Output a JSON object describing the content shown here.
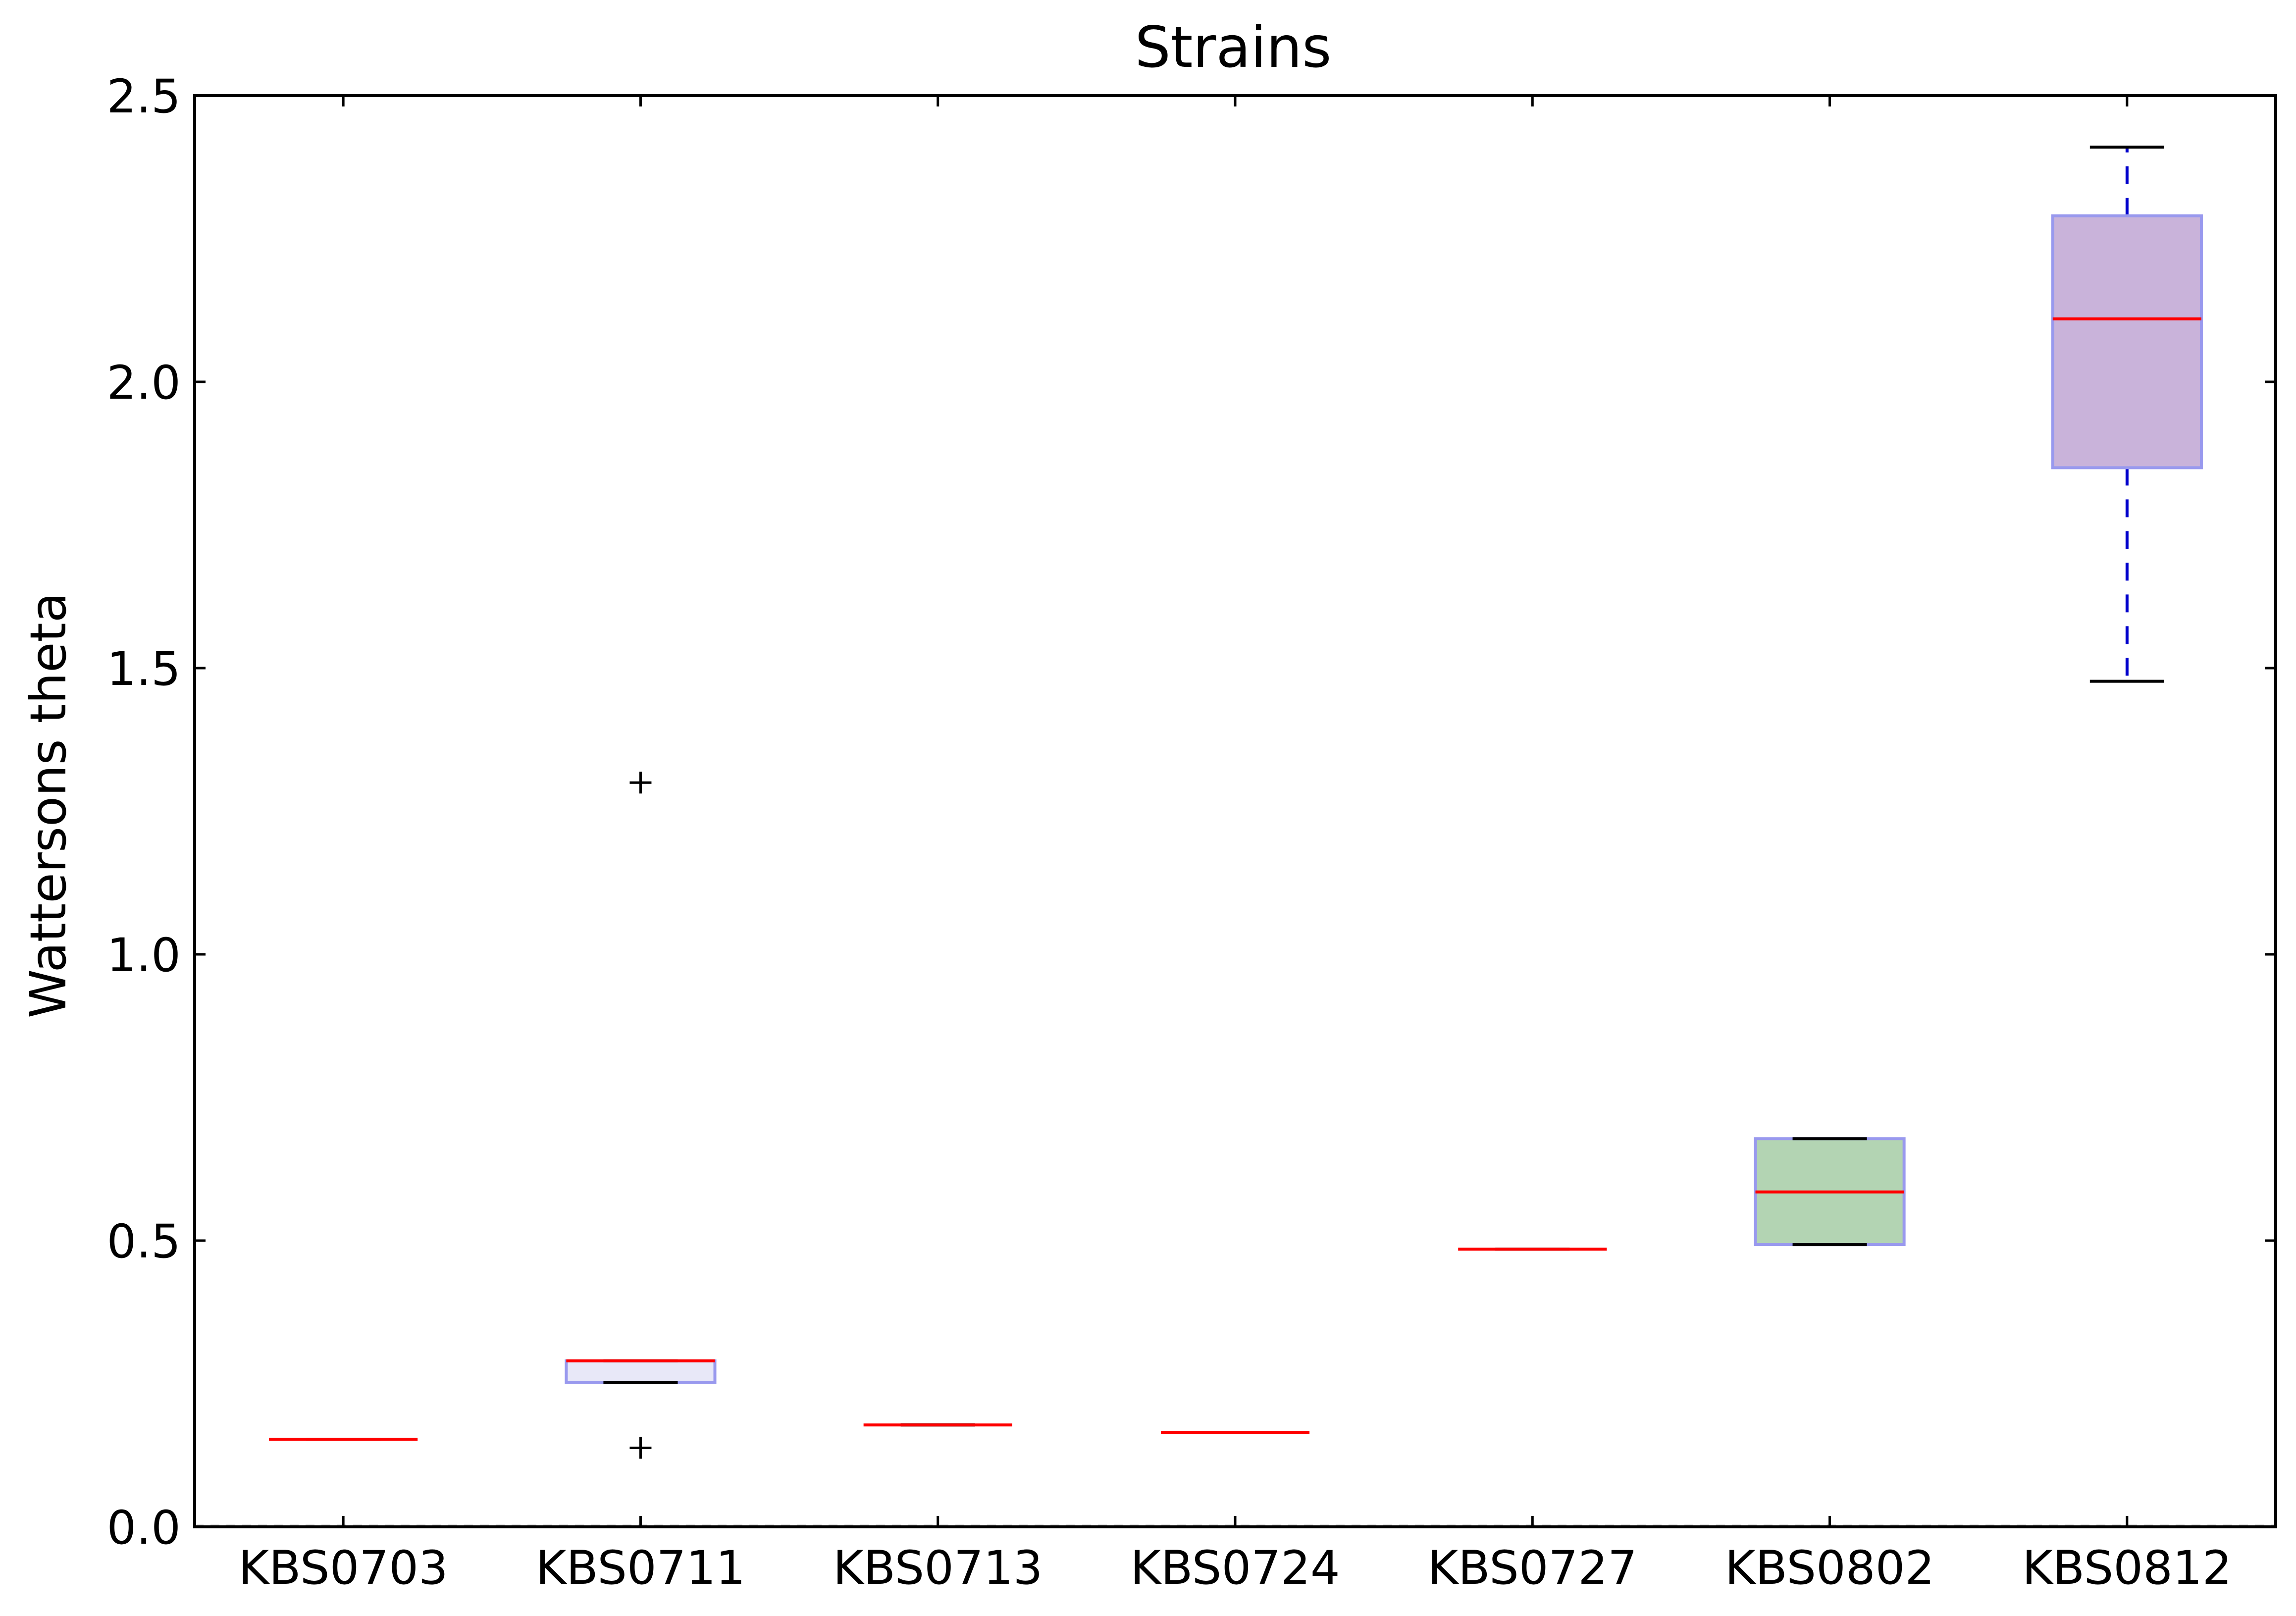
{
  "chart_data": {
    "type": "box",
    "title": "Strains",
    "xlabel": "",
    "ylabel": "Wattersons theta",
    "ylim": [
      0.0,
      2.5
    ],
    "yticks": [
      "0.0",
      "0.5",
      "1.0",
      "1.5",
      "2.0",
      "2.5"
    ],
    "categories": [
      "KBS0703",
      "KBS0711",
      "KBS0713",
      "KBS0724",
      "KBS0727",
      "KBS0802",
      "KBS0812"
    ],
    "boxes": [
      {
        "category": "KBS0703",
        "whislo": 0.153,
        "q1": 0.153,
        "median": 0.153,
        "q3": 0.153,
        "whishi": 0.153,
        "fliers": [],
        "fill": "#e8e8f8"
      },
      {
        "category": "KBS0711",
        "whislo": 0.252,
        "q1": 0.252,
        "median": 0.29,
        "q3": 0.29,
        "whishi": 0.29,
        "fliers": [
          1.3,
          0.138
        ],
        "fill": "#e8e8f8"
      },
      {
        "category": "KBS0713",
        "whislo": 0.178,
        "q1": 0.178,
        "median": 0.178,
        "q3": 0.178,
        "whishi": 0.178,
        "fliers": [],
        "fill": "#e8e8f8"
      },
      {
        "category": "KBS0724",
        "whislo": 0.165,
        "q1": 0.165,
        "median": 0.165,
        "q3": 0.165,
        "whishi": 0.165,
        "fliers": [],
        "fill": "#e8e8f8"
      },
      {
        "category": "KBS0727",
        "whislo": 0.485,
        "q1": 0.485,
        "median": 0.485,
        "q3": 0.485,
        "whishi": 0.485,
        "fliers": [],
        "fill": "#e8e8f8"
      },
      {
        "category": "KBS0802",
        "whislo": 0.493,
        "q1": 0.493,
        "median": 0.585,
        "q3": 0.678,
        "whishi": 0.678,
        "fliers": [],
        "fill": "#b3d4b3"
      },
      {
        "category": "KBS0812",
        "whislo": 1.477,
        "q1": 1.85,
        "median": 2.11,
        "q3": 2.29,
        "whishi": 2.41,
        "fliers": [],
        "fill": "#c9b3da"
      }
    ],
    "grid": false,
    "colors": {
      "median": "#ff0000",
      "box_edge": "#9999ee",
      "whisker": "#0000cc",
      "cap": "#000000",
      "flier": "#000000"
    }
  }
}
